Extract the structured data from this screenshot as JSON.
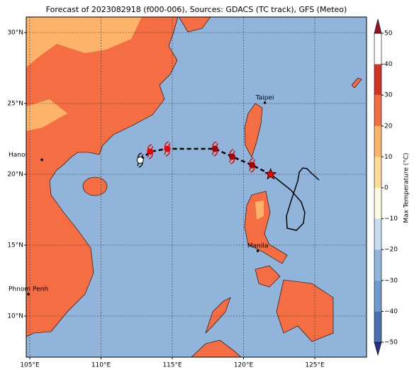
{
  "map": {
    "title": "Forecast of 2023082918 (f000-006), Sources: GDACS (TC track), GFS (Meteo)",
    "lon_ticks": [
      {
        "value": 105,
        "label": "105°E"
      },
      {
        "value": 110,
        "label": "110°E"
      },
      {
        "value": 115,
        "label": "115°E"
      },
      {
        "value": 120,
        "label": "120°E"
      },
      {
        "value": 125,
        "label": "125°E"
      }
    ],
    "lat_ticks": [
      {
        "value": 10,
        "label": "10°N"
      },
      {
        "value": 15,
        "label": "15°N"
      },
      {
        "value": 20,
        "label": "20°N"
      },
      {
        "value": 25,
        "label": "25°N"
      },
      {
        "value": 30,
        "label": "30°N"
      }
    ],
    "grid": true,
    "cities": [
      {
        "name": "Taipei",
        "lon": 121.5,
        "lat": 25.05
      },
      {
        "name": "Hanoi",
        "lon": 105.85,
        "lat": 21.03
      },
      {
        "name": "Manila",
        "lon": 121.0,
        "lat": 14.6
      },
      {
        "name": "Phnom Penh",
        "lon": 104.9,
        "lat": 11.55
      }
    ],
    "forecast_track": {
      "lon": [
        121.9,
        120.6,
        119.2,
        118.0,
        114.65,
        113.45,
        112.75
      ],
      "lat": [
        20.0,
        20.65,
        21.25,
        21.8,
        21.8,
        21.6,
        21.0
      ]
    },
    "past_track": {
      "lon": [
        121.92,
        122.56,
        123.31,
        124.05,
        124.3,
        124.2,
        123.71,
        123.06,
        123.01,
        123.31,
        123.56,
        123.81,
        123.91,
        124.15,
        124.45,
        124.8,
        125.3
      ],
      "lat": [
        20.0,
        19.5,
        18.9,
        18.05,
        17.3,
        16.55,
        16.05,
        16.2,
        17.05,
        18.05,
        18.8,
        19.55,
        20.15,
        20.45,
        20.4,
        20.05,
        19.6
      ]
    },
    "colorbar": {
      "label": "Max Temperature (°C)",
      "ticks": [
        {
          "value": -50,
          "label": "−50"
        },
        {
          "value": -40,
          "label": "−40"
        },
        {
          "value": -30,
          "label": "−30"
        },
        {
          "value": -20,
          "label": "−20"
        },
        {
          "value": -10,
          "label": "−10"
        },
        0,
        10,
        20,
        30,
        40,
        50
      ],
      "colors": [
        "#2b2c8c",
        "#4a6fb2",
        "#6d9bcb",
        "#91b5da",
        "#c5ddee",
        "#fffbe0",
        "#fddc96",
        "#fdb46a",
        "#f46d43",
        "#d23328",
        "#9e0f26"
      ]
    }
  }
}
